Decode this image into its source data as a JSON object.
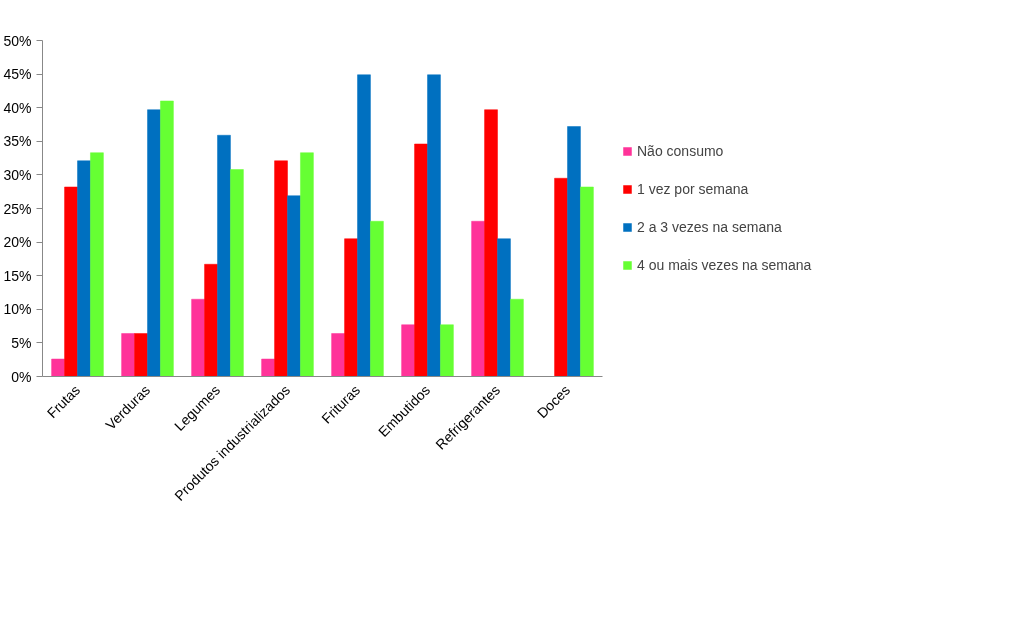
{
  "chart_data": {
    "type": "bar",
    "categories": [
      "Frutas",
      "Verduras",
      "Legumes",
      "Produtos industrializados",
      "Frituras",
      "Embutidos",
      "Refrigerantes",
      "Doces"
    ],
    "series": [
      {
        "name": "Não consumo",
        "color": "#ff3399",
        "values": [
          2.6,
          6.4,
          11.5,
          2.6,
          6.4,
          7.7,
          23.1,
          0
        ]
      },
      {
        "name": "1 vez por semana",
        "color": "#ff0000",
        "values": [
          28.2,
          6.4,
          16.7,
          32.1,
          20.5,
          34.6,
          39.7,
          29.5
        ]
      },
      {
        "name": "2 a 3 vezes na semana",
        "color": "#0070c0",
        "values": [
          32.1,
          39.7,
          35.9,
          26.9,
          44.9,
          44.9,
          20.5,
          37.2
        ]
      },
      {
        "name": "4 ou mais vezes na semana",
        "color": "#66ff33",
        "values": [
          33.3,
          41.0,
          30.8,
          33.3,
          23.1,
          7.7,
          11.5,
          28.2
        ]
      }
    ],
    "ylim": [
      0,
      50
    ],
    "yticks": [
      {
        "value": 0,
        "label": "0%"
      },
      {
        "value": 5,
        "label": "5%"
      },
      {
        "value": 10,
        "label": "10%"
      },
      {
        "value": 15,
        "label": "15%"
      },
      {
        "value": 20,
        "label": "20%"
      },
      {
        "value": 25,
        "label": "25%"
      },
      {
        "value": 30,
        "label": "30%"
      },
      {
        "value": 35,
        "label": "35%"
      },
      {
        "value": 40,
        "label": "40%"
      },
      {
        "value": 45,
        "label": "45%"
      },
      {
        "value": 50,
        "label": "50%"
      }
    ],
    "grid": false,
    "legend": "right"
  }
}
